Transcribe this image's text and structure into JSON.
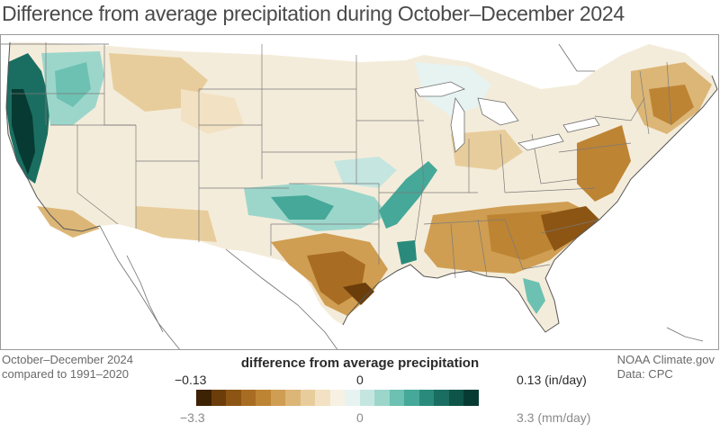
{
  "title": "Difference from average precipitation during October–December 2024",
  "period": {
    "line1": "October–December 2024",
    "line2": "compared to 1991–2020"
  },
  "credit": {
    "line1": "NOAA Climate.gov",
    "line2": "Data: CPC"
  },
  "legend": {
    "title": "difference from average precipitation",
    "top_min": "−0.13",
    "top_mid": "0",
    "top_max": "0.13 (in/day)",
    "bottom_min": "−3.3",
    "bottom_mid": "0",
    "bottom_max": "3.3 (mm/day)",
    "colors": [
      "#3d2203",
      "#6b3d0b",
      "#8c5514",
      "#a86c22",
      "#bd8434",
      "#cf9e52",
      "#dcb676",
      "#e8cd9c",
      "#f2e2c3",
      "#f7f1e3",
      "#e6f3f1",
      "#c5e6e0",
      "#9cd6cb",
      "#6cc1b2",
      "#45a898",
      "#2a8b7c",
      "#1a6e61",
      "#0f5449",
      "#073a32"
    ]
  },
  "map": {
    "ocean_color": "#ffffff",
    "border_color": "#6e6e6e",
    "land_base_color": "#f4ecda"
  }
}
